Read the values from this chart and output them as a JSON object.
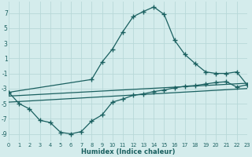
{
  "xlabel": "Humidex (Indice chaleur)",
  "xlim": [
    0,
    23
  ],
  "ylim": [
    -10,
    8.5
  ],
  "xticks": [
    0,
    1,
    2,
    3,
    4,
    5,
    6,
    7,
    8,
    9,
    10,
    11,
    12,
    13,
    14,
    15,
    16,
    17,
    18,
    19,
    20,
    21,
    22,
    23
  ],
  "yticks": [
    -9,
    -7,
    -5,
    -3,
    -1,
    1,
    3,
    5,
    7
  ],
  "bg_color": "#d4ecec",
  "grid_color": "#b8d8d8",
  "line_color": "#1a6060",
  "curve_bottom_x": [
    0,
    1,
    2,
    3,
    4,
    5,
    6,
    7,
    8,
    9,
    10,
    11,
    12,
    13,
    14,
    15,
    16,
    17,
    18,
    19,
    20,
    21,
    22,
    23
  ],
  "curve_bottom_y": [
    -3.5,
    -5.0,
    -5.7,
    -7.2,
    -7.5,
    -8.8,
    -9.0,
    -8.7,
    -7.3,
    -6.5,
    -4.8,
    -4.4,
    -3.9,
    -3.7,
    -3.4,
    -3.2,
    -2.9,
    -2.7,
    -2.6,
    -2.4,
    -2.2,
    -2.1,
    -2.8,
    -2.5
  ],
  "curve_top_x": [
    0,
    8,
    9,
    10,
    11,
    12,
    13,
    14,
    15,
    16,
    17,
    18,
    19,
    20,
    21,
    22,
    23
  ],
  "curve_top_y": [
    -3.5,
    -1.8,
    0.5,
    2.2,
    4.5,
    6.5,
    7.2,
    7.8,
    6.8,
    3.4,
    1.5,
    0.3,
    -0.8,
    -1.0,
    -1.0,
    -0.8,
    -2.5
  ],
  "line1_x": [
    0,
    23
  ],
  "line1_y": [
    -4.0,
    -2.3
  ],
  "line2_x": [
    0,
    23
  ],
  "line2_y": [
    -4.8,
    -3.0
  ]
}
